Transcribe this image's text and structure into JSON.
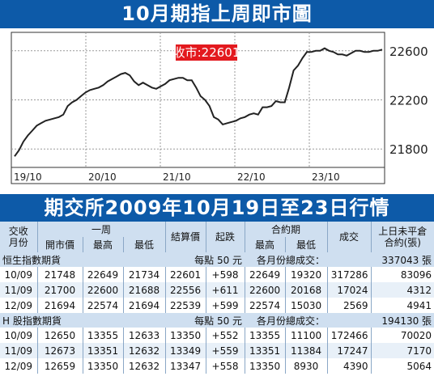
{
  "header_title": "10月期指上周即市圖",
  "table_title": "期交所2009年10月19日至23日行情",
  "chart_data": {
    "type": "line",
    "title": "10月期指上周即市圖",
    "annotation": "收市:22601",
    "x_tick_labels": [
      "19/10",
      "20/10",
      "21/10",
      "22/10",
      "23/10"
    ],
    "y_tick_labels": [
      "22600",
      "22200",
      "21800"
    ],
    "ylim": [
      21650,
      22750
    ],
    "series": [
      {
        "values": [
          21740,
          21790,
          21860,
          21910,
          21950,
          21990,
          22010,
          22030,
          22040,
          22050,
          22060,
          22080,
          22150,
          22180,
          22200,
          22230,
          22260,
          22280,
          22290,
          22300,
          22320,
          22350,
          22370,
          22390,
          22410,
          22420,
          22400,
          22350,
          22320,
          22340,
          22320,
          22300,
          22290,
          22310,
          22330,
          22360,
          22370,
          22380,
          22380,
          22360,
          22360,
          22300,
          22230,
          22200,
          22150,
          22060,
          22040,
          22000,
          22010,
          22020,
          22030,
          22050,
          22060,
          22080,
          22090,
          22080,
          22140,
          22140,
          22150,
          22190,
          22180,
          22180,
          22300,
          22440,
          22480,
          22540,
          22590,
          22590,
          22600,
          22600,
          22620,
          22600,
          22590,
          22570,
          22570,
          22560,
          22580,
          22600,
          22600,
          22590,
          22590,
          22600,
          22600,
          22610
        ]
      }
    ]
  },
  "table": {
    "headers": {
      "contract_month": "交收\n月份",
      "week": "一周",
      "open": "開市價",
      "high": "最高",
      "low": "最低",
      "settle": "結算價",
      "change": "起跌",
      "contract_period": "合約期",
      "cp_high": "最高",
      "cp_low": "最低",
      "volume": "成交",
      "open_interest": "上日未平倉\n合約(張)"
    },
    "groups": [
      {
        "name": "恒生指數期貨",
        "point_value": "每點 50 元",
        "total_label": "各月份總成交：",
        "total_value": "337043 張",
        "rows": [
          [
            "10/09",
            "21748",
            "22649",
            "21734",
            "22601",
            "+598",
            "22649",
            "19320",
            "317286",
            "83096"
          ],
          [
            "11/09",
            "21700",
            "22600",
            "21688",
            "22556",
            "+611",
            "22600",
            "20168",
            "17024",
            "4312"
          ],
          [
            "12/09",
            "21694",
            "22574",
            "21694",
            "22539",
            "+599",
            "22574",
            "15030",
            "2569",
            "4941"
          ]
        ]
      },
      {
        "name": "H 股指數期貨",
        "point_value": "每點 50 元",
        "total_label": "各月份總成交：",
        "total_value": "194130 張",
        "rows": [
          [
            "10/09",
            "12650",
            "13355",
            "12633",
            "13350",
            "+552",
            "13355",
            "11100",
            "172466",
            "70020"
          ],
          [
            "11/09",
            "12673",
            "13351",
            "12632",
            "13349",
            "+559",
            "13351",
            "11384",
            "17247",
            "7170"
          ],
          [
            "12/09",
            "12659",
            "13350",
            "12632",
            "13347",
            "+558",
            "13350",
            "8930",
            "4390",
            "5064"
          ]
        ]
      }
    ]
  }
}
